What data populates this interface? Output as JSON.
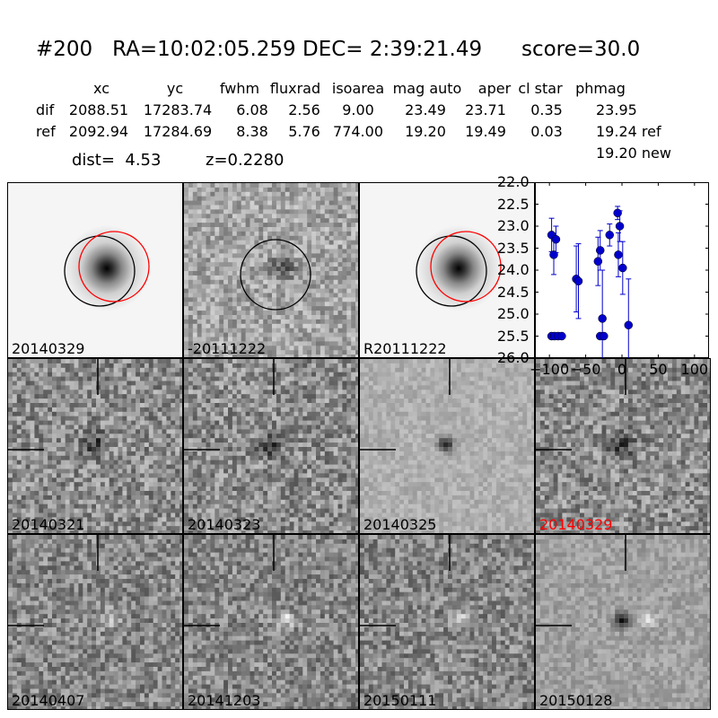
{
  "header": {
    "title": "#200   RA=10:02:05.259 DEC= 2:39:21.49      score=30.0"
  },
  "table": {
    "columns": [
      "xc",
      "yc",
      "fwhm",
      "fluxrad",
      "isoarea",
      "mag auto",
      "aper",
      "cl star",
      "phmag"
    ],
    "rows": [
      {
        "label": "dif",
        "values": [
          "2088.51",
          "17283.74",
          "6.08",
          "2.56",
          "9.00",
          "23.49",
          "23.71",
          "0.35",
          "23.95"
        ]
      },
      {
        "label": "ref",
        "values": [
          "2092.94",
          "17284.69",
          "8.38",
          "5.76",
          "774.00",
          "19.20",
          "19.49",
          "0.03",
          "19.24 ref"
        ]
      }
    ],
    "extra_phmag": "19.20 new"
  },
  "info": {
    "dist": "dist=  4.53",
    "z": "z=0.2280"
  },
  "panels": [
    {
      "label": "20140329",
      "style": "template",
      "red_label": false
    },
    {
      "label": "-20111222",
      "style": "diff_noise",
      "red_label": false
    },
    {
      "label": "R20111222",
      "style": "template",
      "red_label": false
    },
    {
      "label": "20140321",
      "style": "noise_dark",
      "red_label": false
    },
    {
      "label": "20140323",
      "style": "noise_dark",
      "red_label": false
    },
    {
      "label": "20140325",
      "style": "smooth_dark",
      "red_label": false
    },
    {
      "label": "20140329",
      "style": "noise_dark",
      "red_label": true
    },
    {
      "label": "20140407",
      "style": "noise_bright",
      "red_label": false
    },
    {
      "label": "20141203",
      "style": "noise_bright",
      "red_label": false
    },
    {
      "label": "20150111",
      "style": "noise_bright",
      "red_label": false
    },
    {
      "label": "20150128",
      "style": "smooth_darkbright",
      "red_label": false
    }
  ],
  "chart_data": {
    "type": "scatter",
    "xlim": [
      -120,
      120
    ],
    "ylim": [
      26.0,
      22.0
    ],
    "y_inverted": true,
    "xticks": [
      -100,
      -50,
      0,
      50,
      100
    ],
    "yticks": [
      22.0,
      22.5,
      23.0,
      23.5,
      24.0,
      24.5,
      25.0,
      25.5,
      26.0
    ],
    "color": "#0000cc",
    "points": [
      {
        "x": -97,
        "y": 23.2,
        "err": 0.38
      },
      {
        "x": -94,
        "y": 23.65,
        "err": 0.45
      },
      {
        "x": -91,
        "y": 23.3,
        "err": 0.3
      },
      {
        "x": -97,
        "y": 25.5,
        "err": 0.0
      },
      {
        "x": -93,
        "y": 25.5,
        "err": 0.0
      },
      {
        "x": -88,
        "y": 25.5,
        "err": 0.0
      },
      {
        "x": -83,
        "y": 25.5,
        "err": 0.0
      },
      {
        "x": -63,
        "y": 24.2,
        "err": 0.75
      },
      {
        "x": -60,
        "y": 24.25,
        "err": 0.85
      },
      {
        "x": -33,
        "y": 23.8,
        "err": 0.55
      },
      {
        "x": -30,
        "y": 23.55,
        "err": 0.45
      },
      {
        "x": -30,
        "y": 25.5,
        "err": 0.0
      },
      {
        "x": -27,
        "y": 25.1,
        "err": 1.1
      },
      {
        "x": -25,
        "y": 25.5,
        "err": 0.0
      },
      {
        "x": -17,
        "y": 23.2,
        "err": 0.25
      },
      {
        "x": -6,
        "y": 22.7,
        "err": 0.15
      },
      {
        "x": -5,
        "y": 23.65,
        "err": 0.5
      },
      {
        "x": -3,
        "y": 23.0,
        "err": 0.35
      },
      {
        "x": 1,
        "y": 23.95,
        "err": 0.6
      },
      {
        "x": 9,
        "y": 25.25,
        "err": 1.05
      }
    ]
  }
}
